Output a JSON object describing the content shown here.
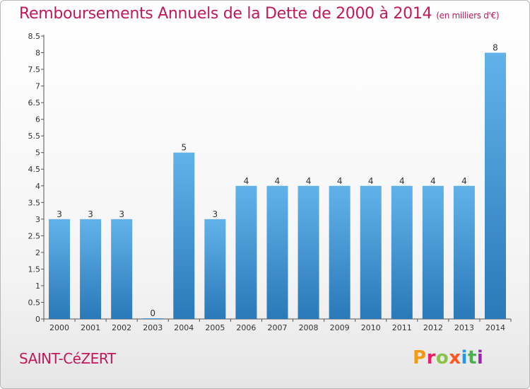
{
  "header": {
    "title": "Remboursements Annuels de la Dette de 2000 à 2014",
    "unit": "(en milliers d'€)"
  },
  "footer": {
    "commune": "SAINT-CéZERT",
    "logo": [
      "P",
      "r",
      "o",
      "x",
      "i",
      "t",
      "i"
    ]
  },
  "colors": {
    "title": "#c2185b",
    "bar_light": "#62b2ea",
    "bar_dark": "#2a79b8",
    "logo": [
      "#f39c12",
      "#e91e63",
      "#8bc34a",
      "#ff5722",
      "#2196f3",
      "#4caf50",
      "#9c27b0"
    ]
  },
  "chart_data": {
    "type": "bar",
    "title": "Remboursements Annuels de la Dette de 2000 à 2014",
    "ylabel": "",
    "xlabel": "",
    "categories": [
      "2000",
      "2001",
      "2002",
      "2003",
      "2004",
      "2005",
      "2006",
      "2007",
      "2008",
      "2009",
      "2010",
      "2011",
      "2012",
      "2013",
      "2014"
    ],
    "values": [
      3,
      3,
      3,
      0,
      5,
      3,
      4,
      4,
      4,
      4,
      4,
      4,
      4,
      4,
      8
    ],
    "labels": [
      "3",
      "3",
      "3",
      "0",
      "5",
      "3",
      "4",
      "4",
      "4",
      "4",
      "4",
      "4",
      "4",
      "4",
      "8"
    ],
    "ylim": [
      0,
      8.5
    ],
    "yticks": [
      "0",
      "0.5",
      "1",
      "1.5",
      "2",
      "2.5",
      "3",
      "3.5",
      "4",
      "4.5",
      "5",
      "5.5",
      "6",
      "6.5",
      "7",
      "7.5",
      "8",
      "8.5"
    ],
    "ytick_values": [
      0,
      0.5,
      1,
      1.5,
      2,
      2.5,
      3,
      3.5,
      4,
      4.5,
      5,
      5.5,
      6,
      6.5,
      7,
      7.5,
      8,
      8.5
    ],
    "grid": false,
    "legend": "none"
  }
}
